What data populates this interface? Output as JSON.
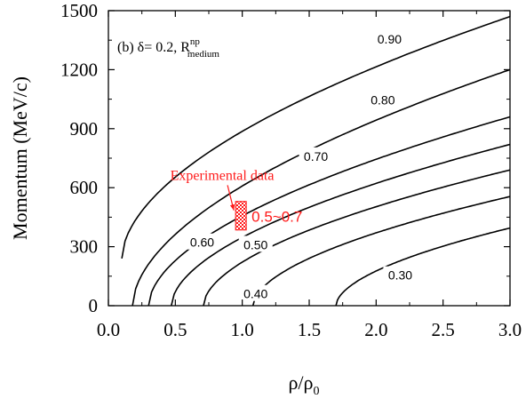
{
  "chart_data": {
    "type": "contour",
    "panel_label": "(b) δ= 0.2, R",
    "panel_label_sup": "np",
    "panel_label_sub": "medium",
    "xlabel": "ρ/ρ",
    "xlabel_sub": "0",
    "ylabel": "Momentum (MeV/c)",
    "xlim": [
      0.0,
      3.0
    ],
    "ylim": [
      0,
      1500
    ],
    "x_ticks": [
      "0.0",
      "0.5",
      "1.0",
      "1.5",
      "2.0",
      "2.5",
      "3.0"
    ],
    "x_tick_values": [
      0.0,
      0.5,
      1.0,
      1.5,
      2.0,
      2.5,
      3.0
    ],
    "y_ticks": [
      "0",
      "300",
      "600",
      "900",
      "1200",
      "1500"
    ],
    "y_tick_values": [
      0,
      300,
      600,
      900,
      1200,
      1500
    ],
    "contours": [
      {
        "label": "0.90",
        "start_x": 0.1,
        "start_y": 240,
        "end_y": 1470,
        "label_at": [
          2.1,
          1355
        ]
      },
      {
        "label": "0.80",
        "start_x": 0.18,
        "start_y": 0,
        "end_y": 1200,
        "label_at": [
          2.05,
          1045
        ]
      },
      {
        "label": "0.70",
        "start_x": 0.3,
        "start_y": 0,
        "end_y": 960,
        "label_at": [
          1.55,
          760
        ]
      },
      {
        "label": "0.60",
        "start_x": 0.47,
        "start_y": 0,
        "end_y": 820
      },
      {
        "label": "0.50",
        "start_x": 0.71,
        "start_y": 0,
        "end_y": 690
      },
      {
        "label": "0.40",
        "start_x": 1.08,
        "start_y": 0,
        "end_y": 555
      },
      {
        "label": "0.30",
        "start_x": 1.7,
        "start_y": 0,
        "end_y": 395,
        "label_at": [
          2.18,
          155
        ]
      }
    ],
    "contour_label_positions": [
      {
        "label": "0.60",
        "at": [
          0.7,
          322
        ]
      },
      {
        "label": "0.50",
        "at": [
          1.1,
          310
        ]
      },
      {
        "label": "0.40",
        "at": [
          1.1,
          60
        ]
      }
    ],
    "experimental": {
      "label": "Experimental data",
      "range_label": "0.5~0.7",
      "x_range": [
        0.95,
        1.03
      ],
      "y_range": [
        385,
        530
      ],
      "label_at": [
        0.85,
        640
      ],
      "color": "#ff1a1a"
    }
  }
}
